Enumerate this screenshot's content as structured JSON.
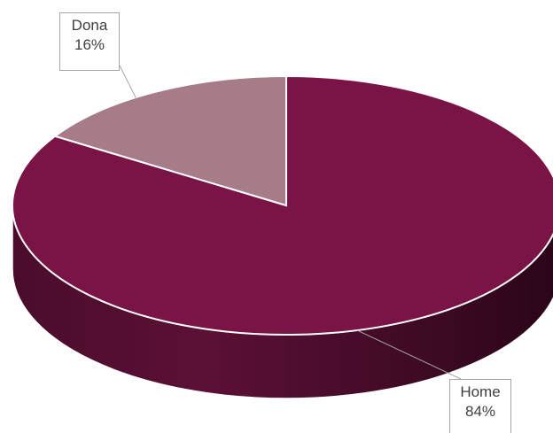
{
  "chart_data": {
    "type": "pie",
    "title": "",
    "categories": [
      "Home",
      "Dona"
    ],
    "values": [
      84,
      16
    ],
    "labels": [
      {
        "name": "Home",
        "value": "84%"
      },
      {
        "name": "Dona",
        "value": "16%"
      }
    ],
    "colors": [
      "#7a1446",
      "#a67c89"
    ],
    "style": "3d",
    "legend": "none"
  }
}
